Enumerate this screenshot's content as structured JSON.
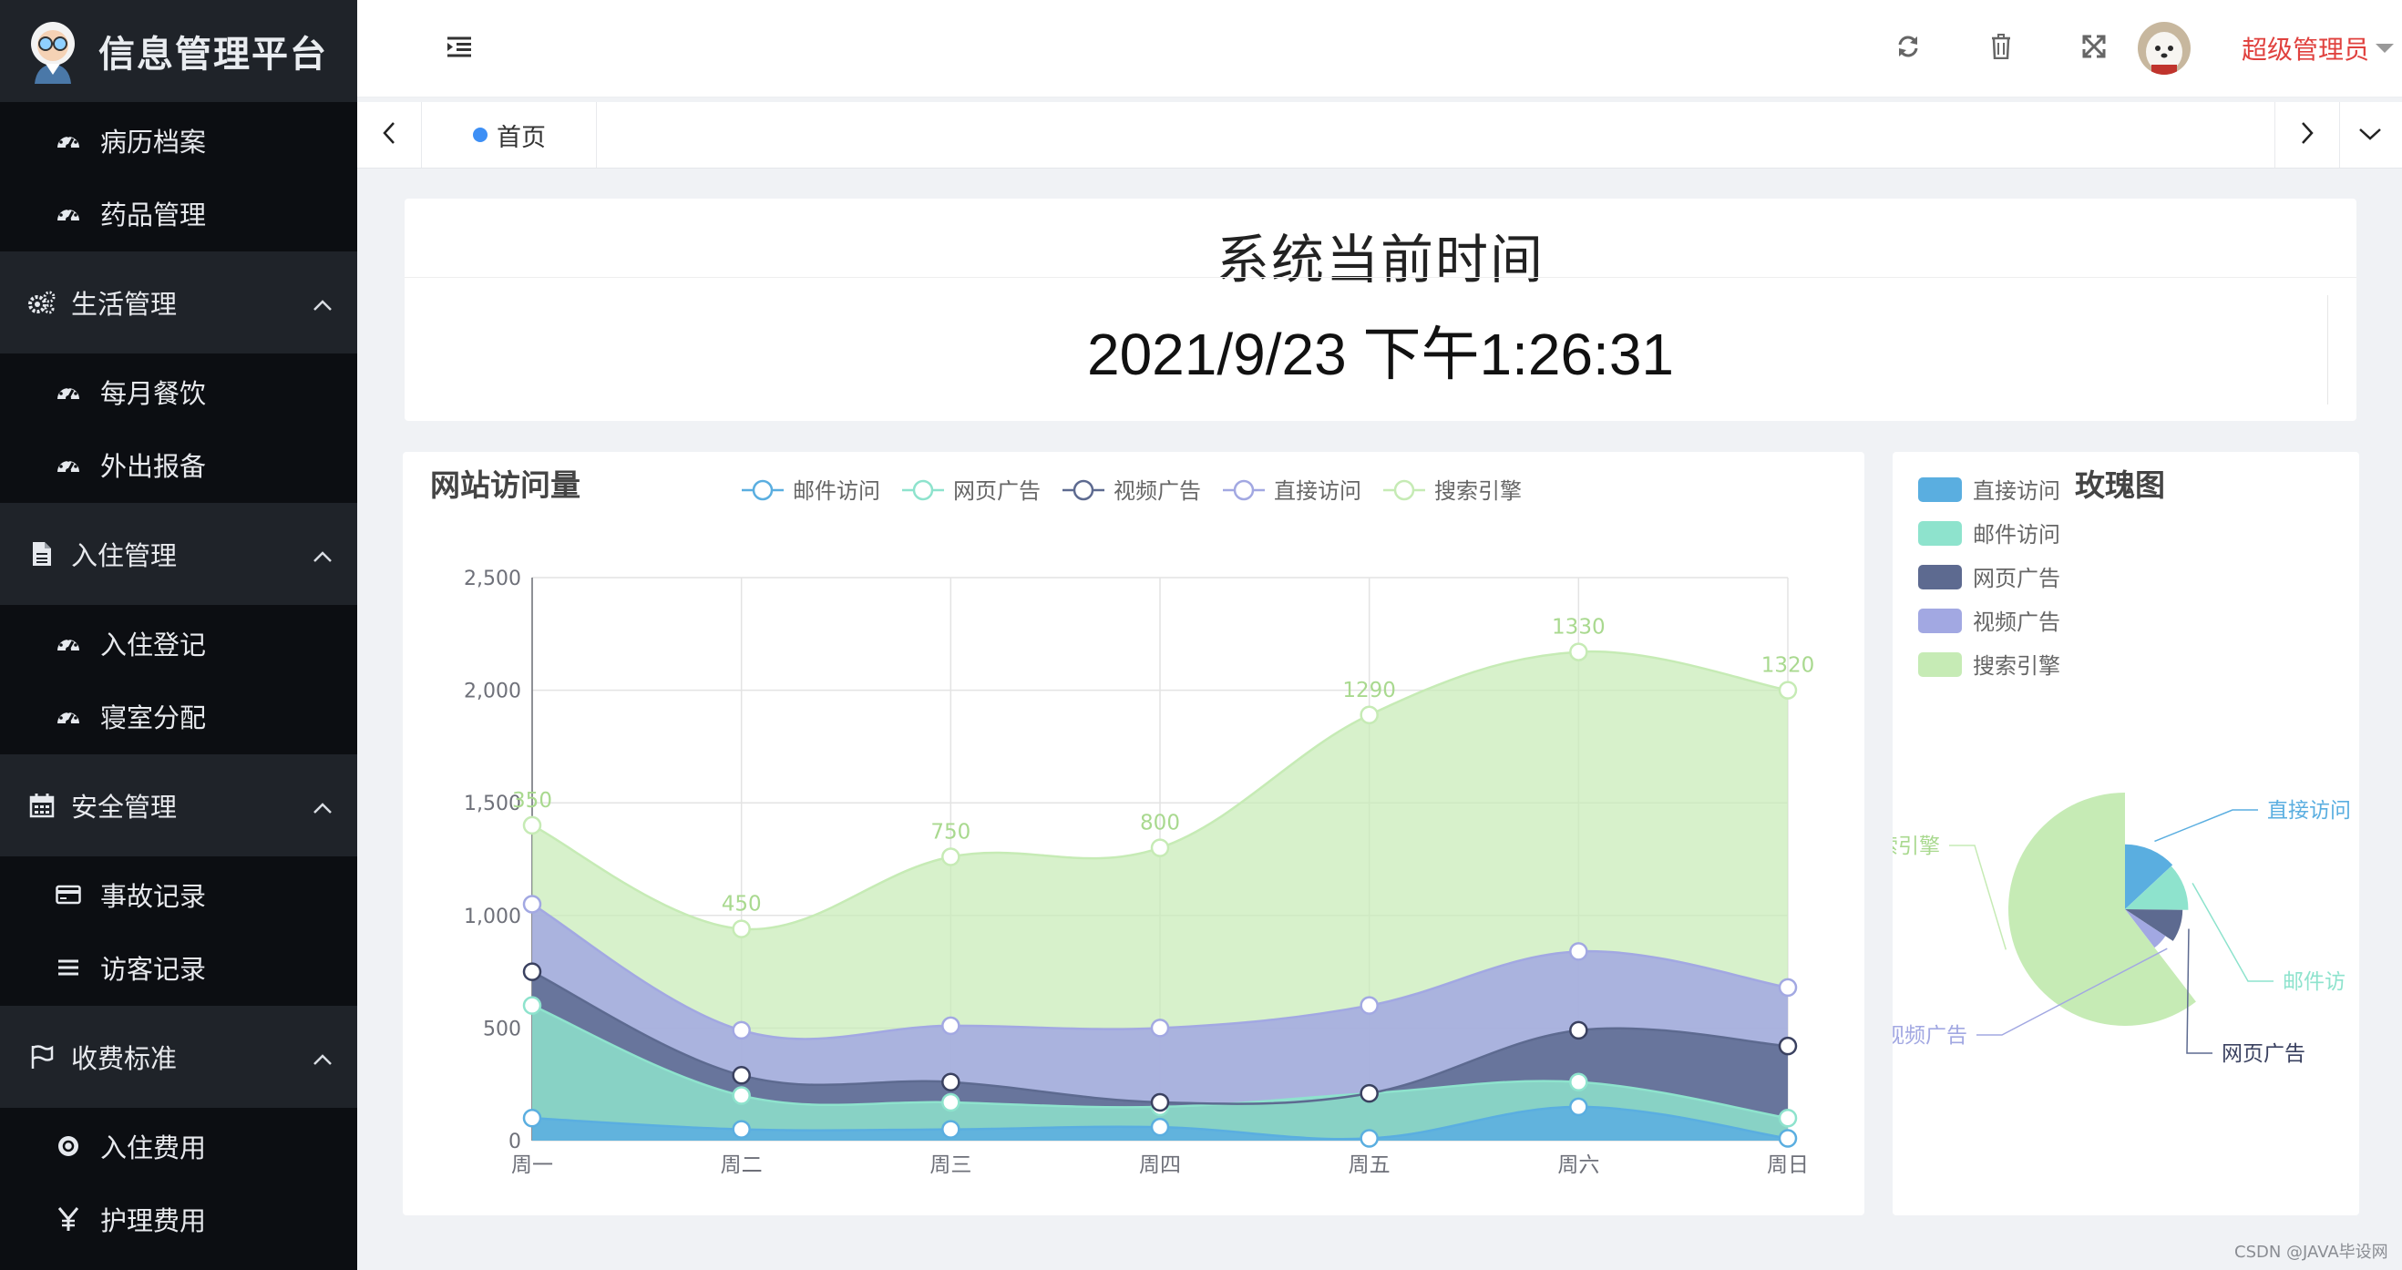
{
  "sidebar": {
    "title": "信息管理平台",
    "top_items": [
      {
        "label": "病历档案",
        "icon": "dashboard-icon"
      },
      {
        "label": "药品管理",
        "icon": "dashboard-icon"
      }
    ],
    "groups": [
      {
        "label": "生活管理",
        "icon": "gears-icon",
        "items": [
          {
            "label": "每月餐饮",
            "icon": "dashboard-icon"
          },
          {
            "label": "外出报备",
            "icon": "dashboard-icon"
          }
        ]
      },
      {
        "label": "入住管理",
        "icon": "file-icon",
        "items": [
          {
            "label": "入住登记",
            "icon": "dashboard-icon"
          },
          {
            "label": "寝室分配",
            "icon": "dashboard-icon"
          }
        ]
      },
      {
        "label": "安全管理",
        "icon": "calendar-icon",
        "items": [
          {
            "label": "事故记录",
            "icon": "card-icon"
          },
          {
            "label": "访客记录",
            "icon": "list-icon"
          }
        ]
      },
      {
        "label": "收费标准",
        "icon": "flag-icon",
        "items": [
          {
            "label": "入住费用",
            "icon": "coin-icon"
          },
          {
            "label": "护理费用",
            "icon": "yen-icon"
          }
        ]
      }
    ]
  },
  "header": {
    "icons": [
      "menu-fold-icon",
      "refresh-icon",
      "trash-icon",
      "fullscreen-icon",
      "avatar",
      "caret-down-icon"
    ],
    "user_name": "超级管理员"
  },
  "tabs": {
    "home_label": "首页"
  },
  "time_card": {
    "title": "系统当前时间",
    "value": "2021/9/23 下午1:26:31"
  },
  "colors": {
    "sidebar_bg": "#0c0e12",
    "group_bg": "#1f2329",
    "user_name": "#e0413e",
    "tab_dot": "#3d8ff5",
    "series": [
      "#5aaee0",
      "#8ee3cd",
      "#5d6a90",
      "#a2a8e2",
      "#c6ebb5"
    ]
  },
  "chart_data": [
    {
      "type": "area",
      "title": "网站访问量",
      "stacked": true,
      "smooth": true,
      "categories": [
        "周一",
        "周二",
        "周三",
        "周四",
        "周五",
        "周六",
        "周日"
      ],
      "yticks": [
        "0",
        "500",
        "1,000",
        "1,500",
        "2,000",
        "2,500"
      ],
      "ylim": [
        0,
        2500
      ],
      "grid": true,
      "legend_position": "top",
      "series": [
        {
          "name": "邮件访问",
          "values": [
            100,
            50,
            50,
            60,
            10,
            150,
            10
          ]
        },
        {
          "name": "网页广告",
          "values": [
            500,
            150,
            120,
            90,
            200,
            110,
            90
          ]
        },
        {
          "name": "视频广告",
          "values": [
            150,
            90,
            90,
            20,
            0,
            230,
            320
          ]
        },
        {
          "name": "直接访问",
          "values": [
            300,
            200,
            250,
            330,
            390,
            350,
            260
          ]
        },
        {
          "name": "搜索引擎",
          "values": [
            350,
            450,
            750,
            800,
            1290,
            1330,
            1320
          ]
        }
      ],
      "data_labels": [
        "350",
        "450",
        "750",
        "800",
        "1290",
        "1330",
        "1320"
      ]
    },
    {
      "type": "pie",
      "title": "玫瑰图",
      "rose": true,
      "legend_position": "top-left",
      "slices": [
        {
          "name": "直接访问",
          "value": 335
        },
        {
          "name": "邮件访问",
          "value": 310
        },
        {
          "name": "网页广告",
          "value": 234
        },
        {
          "name": "视频广告",
          "value": 135
        },
        {
          "name": "搜索引擎",
          "value": 1548
        }
      ],
      "visible_labels": [
        "直接访问",
        "邮件访",
        "网页广告",
        "视频广告",
        "索引擎"
      ]
    }
  ],
  "watermark": "CSDN @JAVA毕设网"
}
